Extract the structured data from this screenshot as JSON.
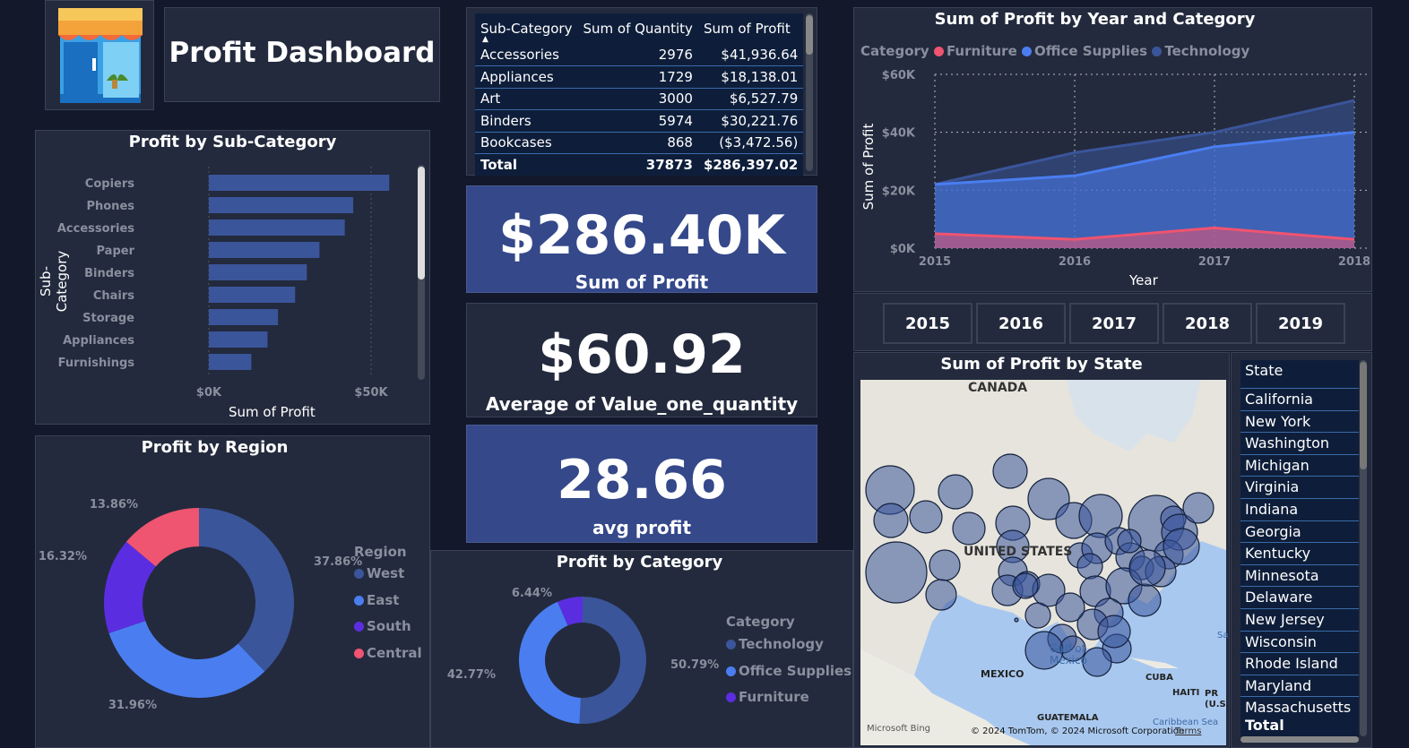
{
  "header": {
    "title": "Profit Dashboard",
    "logo": "store-icon"
  },
  "subcategory_table": {
    "columns": [
      "Sub-Category",
      "Sum of Quantity",
      "Sum of Profit"
    ],
    "rows": [
      {
        "name": "Accessories",
        "qty": "2976",
        "profit": "$41,936.64"
      },
      {
        "name": "Appliances",
        "qty": "1729",
        "profit": "$18,138.01"
      },
      {
        "name": "Art",
        "qty": "3000",
        "profit": "$6,527.79"
      },
      {
        "name": "Binders",
        "qty": "5974",
        "profit": "$30,221.76"
      },
      {
        "name": "Bookcases",
        "qty": "868",
        "profit": "($3,472.56)"
      }
    ],
    "total": {
      "name": "Total",
      "qty": "37873",
      "profit": "$286,397.02"
    }
  },
  "kpis": {
    "sum_profit": {
      "value": "$286.40K",
      "label": "Sum of Profit"
    },
    "avg_value": {
      "value": "$60.92",
      "label": "Average of Value_one_quantity"
    },
    "avg_profit": {
      "value": "28.66",
      "label": "avg profit"
    }
  },
  "bar_chart": {
    "title": "Profit by Sub-Category",
    "xlabel": "Sum of Profit",
    "ylabel": "Sub-Category",
    "ticks": [
      "$0K",
      "$50K"
    ]
  },
  "region_chart": {
    "title": "Profit by Region",
    "legend_title": "Region",
    "labels": [
      "37.86%",
      "31.96%",
      "16.32%",
      "13.86%"
    ]
  },
  "category_chart": {
    "title": "Profit by Category",
    "legend_title": "Category",
    "labels": [
      "50.79%",
      "42.77%",
      "6.44%"
    ]
  },
  "line_chart": {
    "title": "Sum of Profit by Year and Category",
    "legend_title": "Category",
    "legend": [
      "Furniture",
      "Office Supplies",
      "Technology"
    ],
    "ylabel": "Sum of Profit",
    "xlabel": "Year",
    "yticks": [
      "$60K",
      "$40K",
      "$20K",
      "$0K"
    ],
    "xticks": [
      "2015",
      "2016",
      "2017",
      "2018"
    ]
  },
  "year_slicer": [
    "2015",
    "2016",
    "2017",
    "2018",
    "2019"
  ],
  "map": {
    "title": "Sum of Profit by State",
    "labels": {
      "canada": "CANADA",
      "us": "UNITED STATES",
      "mexico": "MEXICO",
      "gulf": "Gulf of Mexico",
      "cuba": "CUBA",
      "haiti": "HAITI",
      "pr": "PR (U.S.)",
      "guatemala": "GUATEMALA",
      "carib": "Caribbean Sea",
      "sa": "Sa"
    },
    "attribution": "© 2024 TomTom, © 2024 Microsoft Corporation",
    "terms": "Terms",
    "bing": "Microsoft Bing"
  },
  "state_list": {
    "header": "State",
    "items": [
      "California",
      "New York",
      "Washington",
      "Michigan",
      "Virginia",
      "Indiana",
      "Georgia",
      "Kentucky",
      "Minnesota",
      "Delaware",
      "New Jersey",
      "Wisconsin",
      "Rhode Island",
      "Maryland",
      "Massachusetts"
    ],
    "total": "Total"
  },
  "chart_data": [
    {
      "type": "bar",
      "title": "Profit by Sub-Category",
      "categories": [
        "Copiers",
        "Phones",
        "Accessories",
        "Paper",
        "Binders",
        "Chairs",
        "Storage",
        "Appliances",
        "Furnishings"
      ],
      "values": [
        55.6,
        44.5,
        41.9,
        34.1,
        30.2,
        26.6,
        21.3,
        18.1,
        13.1
      ],
      "xlabel": "Sum of Profit",
      "ylabel": "Sub-Category",
      "xlim": [
        0,
        60
      ],
      "color": "#3a559a"
    },
    {
      "type": "pie",
      "title": "Profit by Region",
      "categories": [
        "West",
        "East",
        "South",
        "Central"
      ],
      "values": [
        37.86,
        31.96,
        16.32,
        13.86
      ],
      "colors": [
        "#3a559a",
        "#4a7ef0",
        "#5a2ee0",
        "#ef5470"
      ]
    },
    {
      "type": "pie",
      "title": "Profit by Category",
      "categories": [
        "Technology",
        "Office Supplies",
        "Furniture"
      ],
      "values": [
        50.79,
        42.77,
        6.44
      ],
      "colors": [
        "#3a559a",
        "#4a7ef0",
        "#5a2ee0"
      ]
    },
    {
      "type": "area",
      "title": "Sum of Profit by Year and Category",
      "x": [
        2015,
        2016,
        2017,
        2018
      ],
      "series": [
        {
          "name": "Furniture",
          "values": [
            5,
            3,
            7,
            3
          ],
          "color": "#ef5470"
        },
        {
          "name": "Office Supplies",
          "values": [
            22,
            25,
            35,
            40
          ],
          "color": "#4a7ef0"
        },
        {
          "name": "Technology",
          "values": [
            22,
            33,
            40,
            51
          ],
          "color": "#3a559a"
        }
      ],
      "ylim": [
        0,
        60
      ],
      "xlabel": "Year",
      "ylabel": "Sum of Profit"
    }
  ],
  "colors": {
    "bg": "#13182a",
    "panel": "#232a3d",
    "kpi": "#34488a",
    "accent": "#4a7ef0"
  }
}
